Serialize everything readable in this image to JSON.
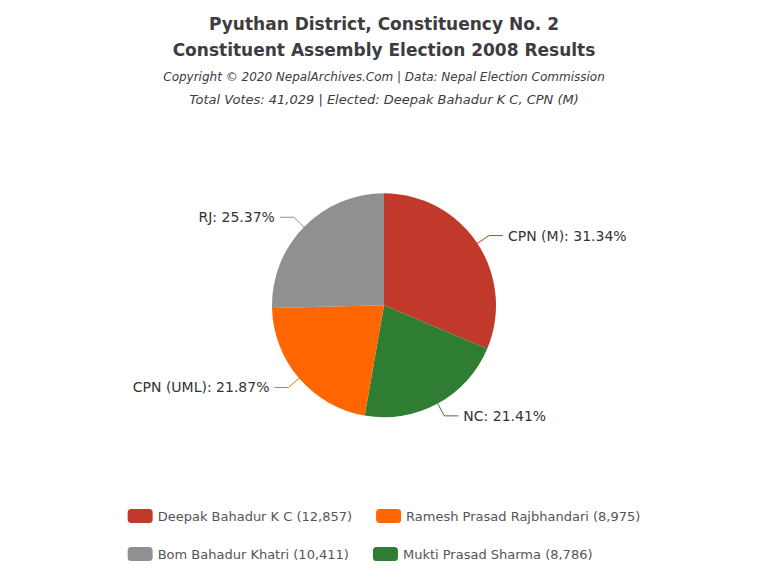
{
  "chart_data": {
    "type": "pie",
    "title": [
      "Pyuthan District, Constituency No. 2",
      "Constituent Assembly Election 2008 Results"
    ],
    "copyright": "Copyright © 2020 NepalArchives.Com | Data: Nepal Election Commission",
    "subtitle": "Total Votes: 41,029 | Elected: Deepak Bahadur K C, CPN (M)",
    "categories": [
      "CPN (M)",
      "NC",
      "CPN (UML)",
      "RJ"
    ],
    "values": [
      31.34,
      21.41,
      21.87,
      25.37
    ],
    "value_labels": [
      "CPN (M): 31.34%",
      "NC: 21.41%",
      "CPN (UML): 21.87%",
      "RJ: 25.37%"
    ],
    "data_labels": true,
    "colors": [
      "#C0392B",
      "#2E7D32",
      "#FF6600",
      "#909090"
    ],
    "legend": "bottom",
    "legend_entries": [
      {
        "name": "Deepak Bahadur K C (12,857)",
        "color": "#C0392B"
      },
      {
        "name": "Ramesh Prasad Rajbhandari (8,975)",
        "color": "#FF6600"
      },
      {
        "name": "Bom Bahadur Khatri (10,411)",
        "color": "#909090"
      },
      {
        "name": "Mukti Prasad Sharma (8,786)",
        "color": "#2E7D32"
      }
    ]
  }
}
